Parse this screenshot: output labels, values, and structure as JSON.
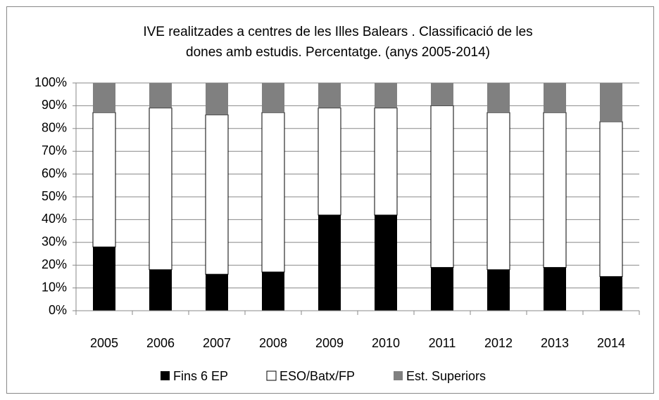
{
  "chart_data": {
    "type": "stacked_bar",
    "title": [
      "IVE realitzades a centres de les Illes Balears .  Classificació de les",
      "dones amb estudis.  Percentatge. (anys  2005-2014)"
    ],
    "categories": [
      "2005",
      "2006",
      "2007",
      "2008",
      "2009",
      "2010",
      "2011",
      "2012",
      "2013",
      "2014"
    ],
    "series": [
      {
        "name": "Fins 6 EP",
        "color": "#000000",
        "values": [
          28,
          18,
          16,
          17,
          42,
          42,
          19,
          18,
          19,
          15
        ]
      },
      {
        "name": "ESO/Batx/FP",
        "color": "#ffffff",
        "values": [
          59,
          71,
          70,
          70,
          47,
          47,
          71,
          69,
          68,
          68
        ]
      },
      {
        "name": "Est. Superiors",
        "color": "#808080",
        "values": [
          13,
          11,
          14,
          13,
          11,
          11,
          10,
          13,
          13,
          17
        ]
      }
    ],
    "ylim": [
      0,
      100
    ],
    "yticks": [
      {
        "value": 0,
        "label": "0%"
      },
      {
        "value": 10,
        "label": "10%"
      },
      {
        "value": 20,
        "label": "20%"
      },
      {
        "value": 30,
        "label": "30%"
      },
      {
        "value": 40,
        "label": "40%"
      },
      {
        "value": 50,
        "label": "50%"
      },
      {
        "value": 60,
        "label": "60%"
      },
      {
        "value": 70,
        "label": "70%"
      },
      {
        "value": 80,
        "label": "80%"
      },
      {
        "value": 90,
        "label": "90%"
      },
      {
        "value": 100,
        "label": "100%"
      }
    ],
    "grid": true,
    "legend": "bottom"
  }
}
